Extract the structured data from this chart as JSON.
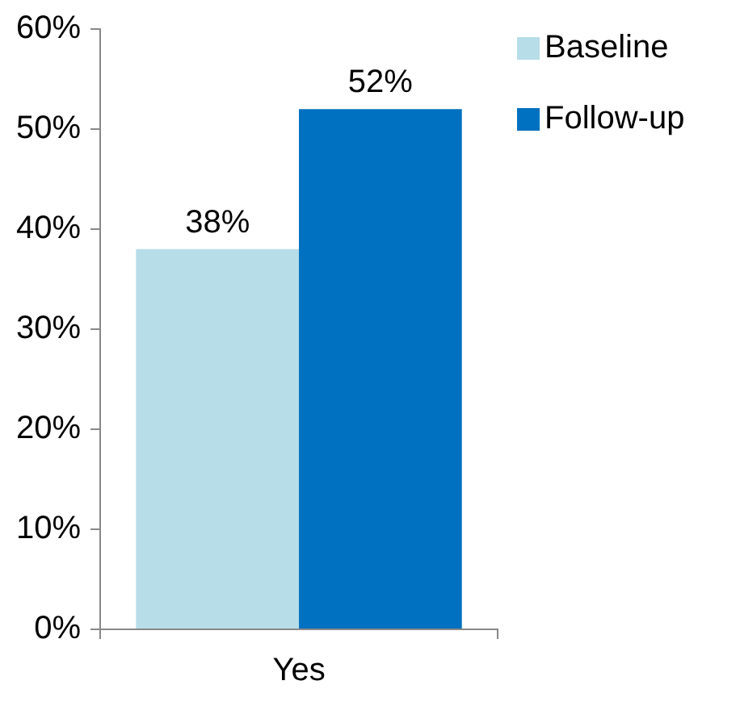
{
  "chart_data": {
    "type": "bar",
    "categories": [
      "Yes"
    ],
    "series": [
      {
        "name": "Baseline",
        "color": "#b7dde8",
        "values": [
          38
        ],
        "value_labels": [
          "38%"
        ]
      },
      {
        "name": "Follow-up",
        "color": "#0070c0",
        "values": [
          52
        ],
        "value_labels": [
          "52%"
        ]
      }
    ],
    "ylim": [
      0,
      60
    ],
    "yticks": [
      {
        "value": 0,
        "label": "0%"
      },
      {
        "value": 10,
        "label": "10%"
      },
      {
        "value": 20,
        "label": "20%"
      },
      {
        "value": 30,
        "label": "30%"
      },
      {
        "value": 40,
        "label": "40%"
      },
      {
        "value": 50,
        "label": "50%"
      },
      {
        "value": 60,
        "label": "60%"
      }
    ],
    "grid": false,
    "legend": "top right"
  }
}
